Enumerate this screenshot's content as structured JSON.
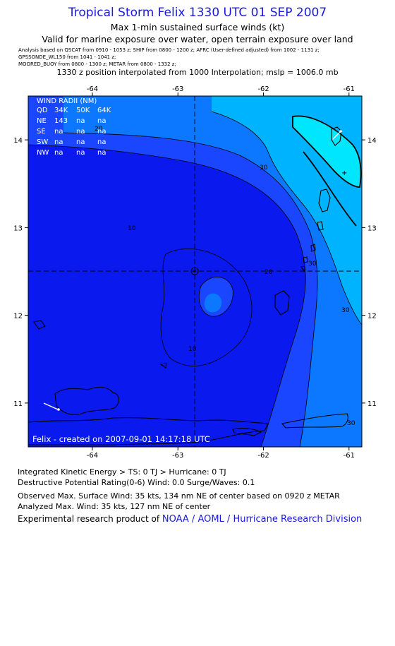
{
  "header": {
    "title": "Tropical Storm Felix 1330 UTC 01 SEP 2007",
    "subtitle1": "Max 1-min sustained surface winds (kt)",
    "subtitle2": "Valid for marine exposure over water, open terrain exposure over land",
    "sources": [
      "Analysis based on  QSCAT from 0910 - 1053 z;  SHIP from 0800 - 1200 z;  AFRC (User-defined adjusted) from 1002 - 1131 z;",
      "GPSSONDE_WL150 from 1041 - 1041 z;",
      "MOORED_BUOY from 0800 - 1300 z;  METAR from 0800 - 1332 z;"
    ],
    "interpolation": "1330 z position interpolated from 1000 Interpolation; mslp = 1006.0 mb"
  },
  "map": {
    "lon_ticks": [
      "-64",
      "-63",
      "-62",
      "-61"
    ],
    "lat_ticks": [
      "14",
      "13",
      "12",
      "11"
    ],
    "lon_range": [
      -64.75,
      -60.85
    ],
    "lat_range": [
      10.5,
      14.5
    ],
    "center": {
      "lon": -62.7,
      "lat": 12.45
    },
    "contour_labels": [
      "10",
      "20",
      "30",
      "30",
      "30",
      "20",
      "10",
      "30"
    ],
    "colors": {
      "lt10": "#0a1aee",
      "c10_20": "#1a46ff",
      "c20_30": "#0c77ff",
      "c30_34": "#00b3ff",
      "gt34": "#00e6ff",
      "land": "#000000",
      "frame": "#000000"
    },
    "wind_radii": {
      "title": "WIND RADII (NM)",
      "columns": [
        "QD",
        "34K",
        "50K",
        "64K"
      ],
      "rows": [
        [
          "NE",
          "143",
          "na",
          "na"
        ],
        [
          "SE",
          "na",
          "na",
          "na"
        ],
        [
          "SW",
          "na",
          "na",
          "na"
        ],
        [
          "NW",
          "na",
          "na",
          "na"
        ]
      ]
    },
    "watermark": "Felix - created on 2007-09-01 14:17:18 UTC"
  },
  "footer": {
    "ike": "Integrated Kinetic Energy > TS: 0 TJ   > Hurricane: 0 TJ",
    "dpr": "Destructive Potential Rating(0-6)   Wind: 0.0 Surge/Waves: 0.1",
    "observed": "Observed Max. Surface Wind: 35 kts, 134 nm NE of center based on 0920 z METAR",
    "analyzed": "Analyzed Max. Wind: 35 kts, 127 nm NE of center",
    "credit_prefix": "Experimental research product of ",
    "credit_link": "NOAA / AOML / Hurricane Research Division"
  }
}
